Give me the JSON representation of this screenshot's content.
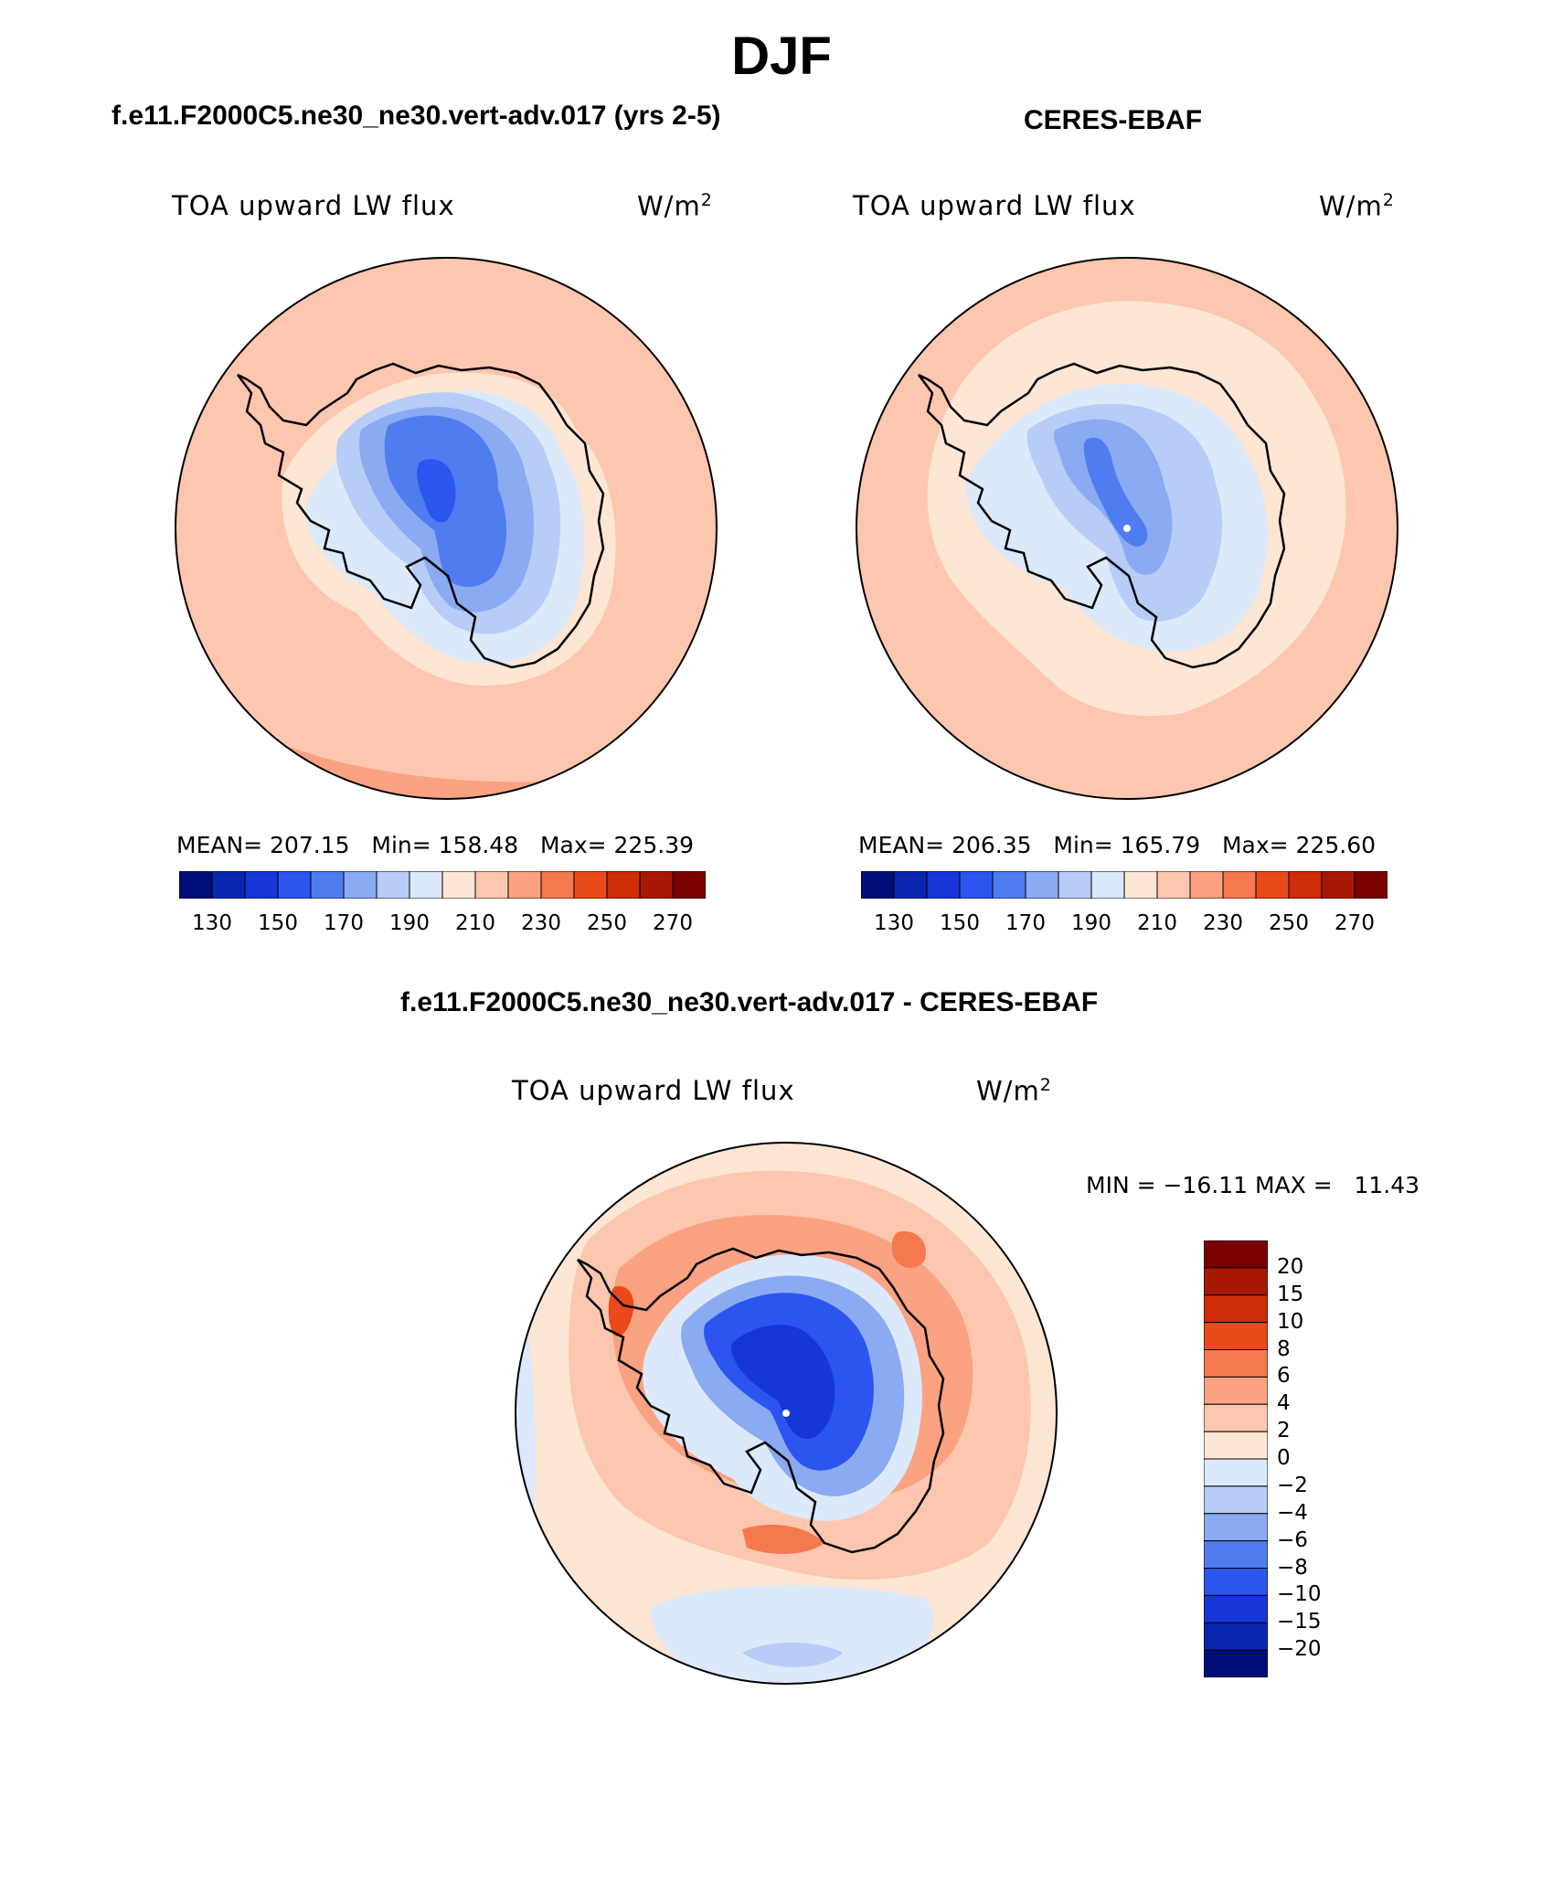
{
  "title": "DJF",
  "panels": [
    {
      "id": "model",
      "case_title": "f.e11.F2000C5.ne30_ne30.vert-adv.017 (yrs 2-5)",
      "variable": "TOA upward LW flux",
      "units_base": "W/m",
      "units_exp": "2",
      "stats_text": "MEAN= 207.15   Min= 158.48   Max= 225.39",
      "stats": {
        "mean": 207.15,
        "min": 158.48,
        "max": 225.39
      }
    },
    {
      "id": "obs",
      "case_title": "CERES-EBAF",
      "variable": "TOA upward LW flux",
      "units_base": "W/m",
      "units_exp": "2",
      "stats_text": "MEAN= 206.35   Min= 165.79   Max= 225.60",
      "stats": {
        "mean": 206.35,
        "min": 165.79,
        "max": 225.6
      }
    }
  ],
  "abs_colorbar": {
    "tick_labels": [
      "130",
      "150",
      "170",
      "190",
      "210",
      "230",
      "250",
      "270"
    ],
    "colors": [
      "#000e7a",
      "#0a25b0",
      "#1636d8",
      "#2b55ee",
      "#4f7df0",
      "#8aaaf2",
      "#b7ccf7",
      "#dce9fa",
      "#fde6d4",
      "#fcc7ae",
      "#faa282",
      "#f6784e",
      "#ea4a1a",
      "#cf2c08",
      "#a81704",
      "#7a0300"
    ]
  },
  "diff_panel": {
    "case_title": "f.e11.F2000C5.ne30_ne30.vert-adv.017 - CERES-EBAF",
    "variable": "TOA upward LW flux",
    "units_base": "W/m",
    "units_exp": "2",
    "stats_text": "MIN = −16.11 MAX =   11.43",
    "stats": {
      "min": -16.11,
      "max": 11.43
    }
  },
  "diff_colorbar": {
    "tick_labels": [
      "20",
      "15",
      "10",
      "8",
      "6",
      "4",
      "2",
      "0",
      "−2",
      "−4",
      "−6",
      "−8",
      "−10",
      "−15",
      "−20"
    ],
    "colors": [
      "#7a0300",
      "#a81704",
      "#cf2c08",
      "#ea4a1a",
      "#f6784e",
      "#faa282",
      "#fcc7ae",
      "#fde6d4",
      "#dce9fa",
      "#b7ccf7",
      "#8aaaf2",
      "#4f7df0",
      "#2b55ee",
      "#1636d8",
      "#0a25b0",
      "#000e7a"
    ]
  }
}
